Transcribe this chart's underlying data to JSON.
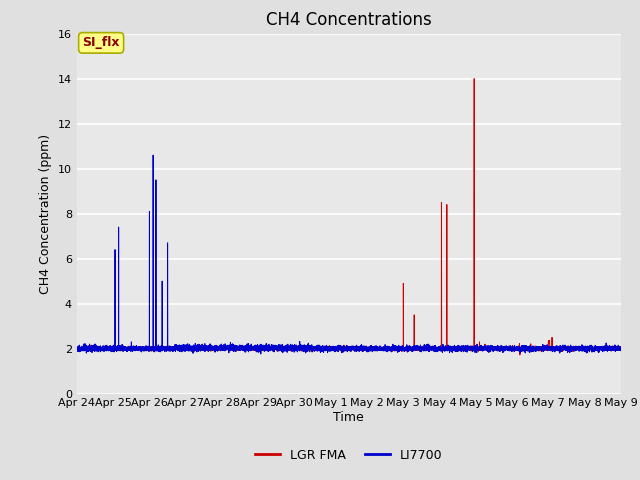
{
  "title": "CH4 Concentrations",
  "xlabel": "Time",
  "ylabel": "CH4 Concentration (ppm)",
  "ylim": [
    0,
    16
  ],
  "background_color": "#e0e0e0",
  "plot_bg_color": "#e8e8e8",
  "annotation_text": "SI_flx",
  "annotation_color": "#8b0000",
  "lgr_color": "#cc0000",
  "li_color": "#0000cc",
  "legend_labels": [
    "LGR FMA",
    "LI7700"
  ],
  "xtick_labels": [
    "Apr 24",
    "Apr 25",
    "Apr 26",
    "Apr 27",
    "Apr 28",
    "Apr 29",
    "Apr 30",
    "May 1",
    "May 2",
    "May 3",
    "May 4",
    "May 5",
    "May 6",
    "May 7",
    "May 8",
    "May 9"
  ],
  "ytick_vals": [
    0,
    2,
    4,
    6,
    8,
    10,
    12,
    14,
    16
  ],
  "title_fontsize": 12,
  "tick_fontsize": 8,
  "ylabel_fontsize": 9,
  "xlabel_fontsize": 9
}
